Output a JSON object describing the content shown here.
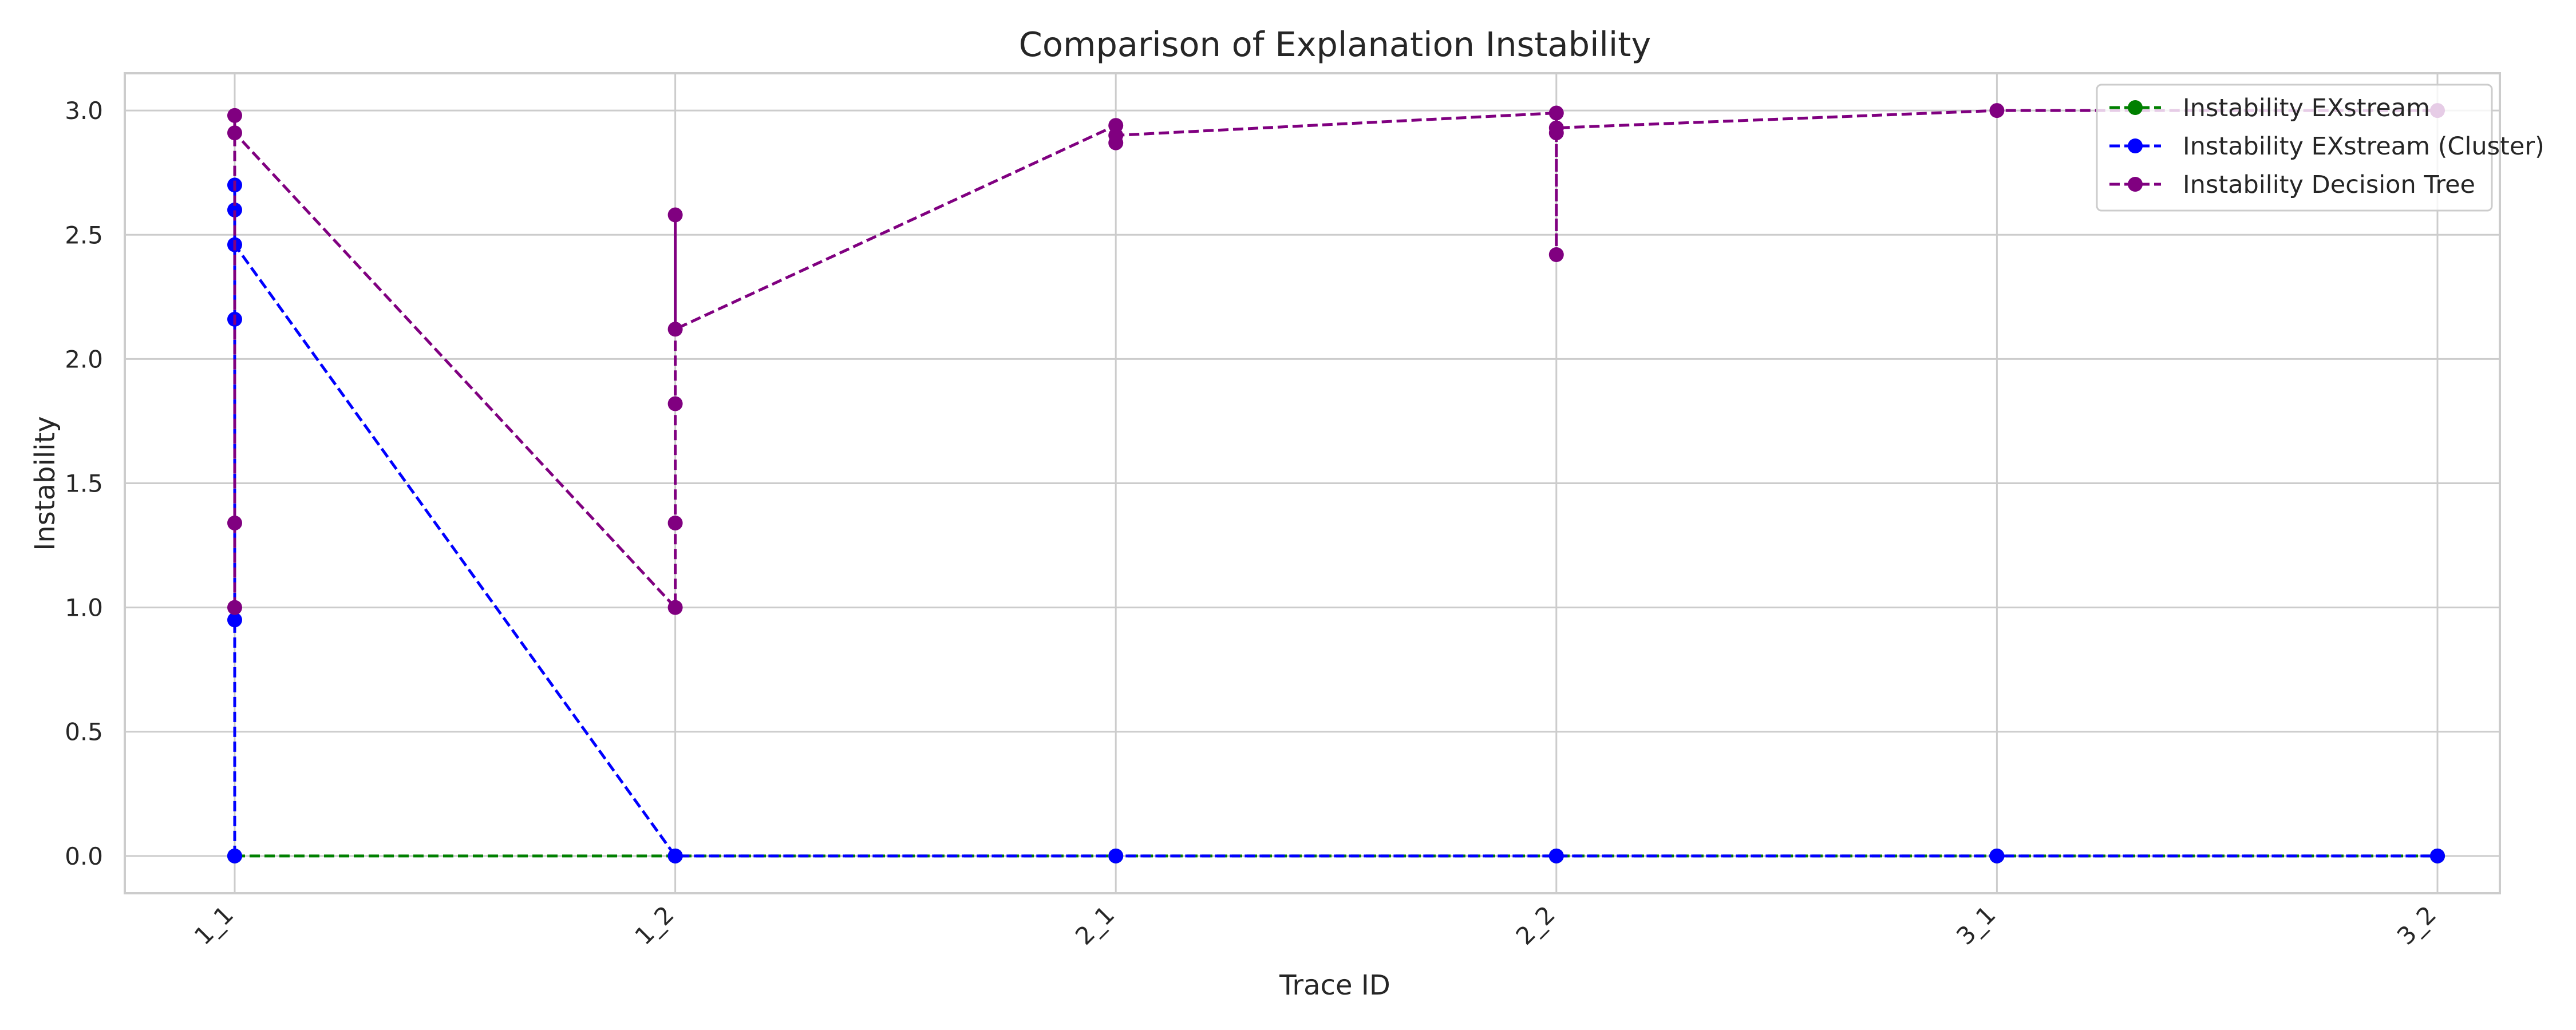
{
  "chart_data": {
    "type": "line",
    "title": "Comparison of Explanation Instability",
    "xlabel": "Trace ID",
    "ylabel": "Instability",
    "categories": [
      "1_1",
      "1_2",
      "2_1",
      "2_2",
      "3_1",
      "3_2"
    ],
    "y_ticks": [
      "0.0",
      "0.5",
      "1.0",
      "1.5",
      "2.0",
      "2.5",
      "3.0"
    ],
    "ylim": [
      -0.15,
      3.15
    ],
    "grid": true,
    "legend_position": "top-right",
    "x_tick_rotation_deg": 45,
    "series": [
      {
        "name": "Instability EXstream",
        "color": "#008000",
        "line_style": "dashed",
        "marker": "circle",
        "points": [
          {
            "x": "1_1",
            "y": 0.0
          },
          {
            "x": "1_2",
            "y": 0.0
          },
          {
            "x": "2_1",
            "y": 0.0
          },
          {
            "x": "2_2",
            "y": 0.0
          },
          {
            "x": "3_1",
            "y": 0.0
          },
          {
            "x": "3_2",
            "y": 0.0
          }
        ]
      },
      {
        "name": "Instability EXstream (Cluster)",
        "color": "#0000ff",
        "line_style": "dashed",
        "marker": "circle",
        "points": [
          {
            "x": "1_1",
            "y": 0.0
          },
          {
            "x": "1_1",
            "y": 0.95
          },
          {
            "x": "1_1",
            "y": 2.16
          },
          {
            "x": "1_1",
            "y": 2.6
          },
          {
            "x": "1_1",
            "y": 2.7
          },
          {
            "x": "1_1",
            "y": 2.46
          },
          {
            "x": "1_2",
            "y": 0.0
          },
          {
            "x": "1_2",
            "y": 0.0
          },
          {
            "x": "2_1",
            "y": 0.0
          },
          {
            "x": "2_2",
            "y": 0.0
          },
          {
            "x": "3_1",
            "y": 0.0
          },
          {
            "x": "3_2",
            "y": 0.0
          }
        ]
      },
      {
        "name": "Instability Decision Tree",
        "color": "#800080",
        "line_style": "dashed",
        "marker": "circle",
        "points": [
          {
            "x": "1_1",
            "y": 1.0
          },
          {
            "x": "1_1",
            "y": 1.34
          },
          {
            "x": "1_1",
            "y": 2.98
          },
          {
            "x": "1_1",
            "y": 2.91
          },
          {
            "x": "1_2",
            "y": 1.0
          },
          {
            "x": "1_2",
            "y": 1.34
          },
          {
            "x": "1_2",
            "y": 1.82
          },
          {
            "x": "1_2",
            "y": 2.58
          },
          {
            "x": "1_2",
            "y": 2.12
          },
          {
            "x": "2_1",
            "y": 2.94
          },
          {
            "x": "2_1",
            "y": 2.87
          },
          {
            "x": "2_1",
            "y": 2.9
          },
          {
            "x": "2_2",
            "y": 2.99
          },
          {
            "x": "2_2",
            "y": 2.91
          },
          {
            "x": "2_2",
            "y": 2.42
          },
          {
            "x": "2_2",
            "y": 2.93
          },
          {
            "x": "3_1",
            "y": 3.0
          },
          {
            "x": "3_2",
            "y": 3.0
          }
        ]
      }
    ]
  }
}
